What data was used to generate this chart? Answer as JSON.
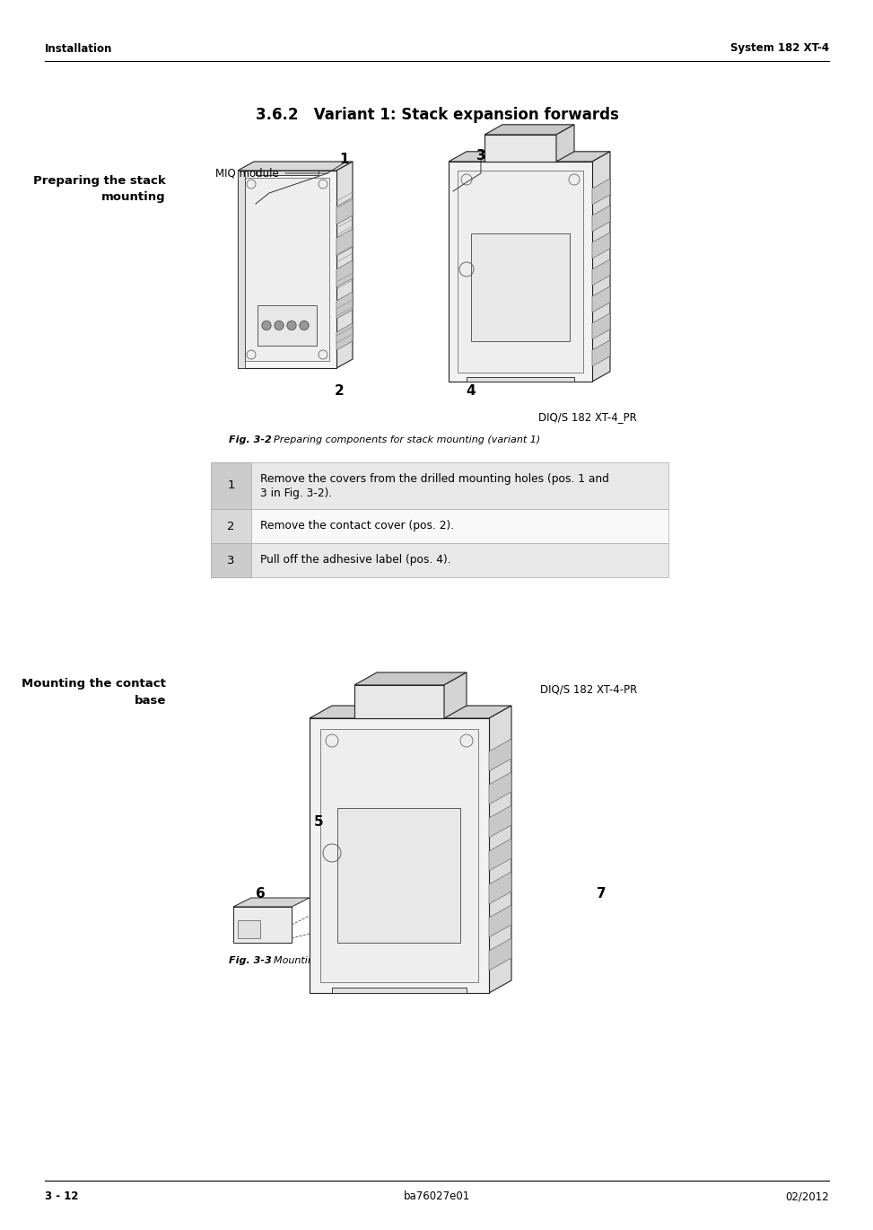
{
  "page_bg": "#ffffff",
  "header_left": "Installation",
  "header_right": "System 182 XT-4",
  "footer_left": "3 - 12",
  "footer_center": "ba76027e01",
  "footer_right": "02/2012",
  "section_title": "3.6.2   Variant 1: Stack expansion forwards",
  "left_label_1_line1": "Preparing the stack",
  "left_label_1_line2": "mounting",
  "left_label_2_line1": "Mounting the contact",
  "left_label_2_line2": "base",
  "fig1_label": "Fig. 3-2",
  "fig1_caption_text": "Preparing components for stack mounting (variant 1)",
  "fig2_label": "Fig. 3-3",
  "fig2_caption_text": "Mounting the contact base (variant 1)",
  "diq_label_1": "DIQ/S 182 XT-4_PR",
  "diq_label_2": "DIQ/S 182 XT-4-PR",
  "miq_label": "MIQ module",
  "table_rows": [
    {
      "num": "1",
      "text_line1": "Remove the covers from the drilled mounting holes (pos. 1 and",
      "text_line2": "3 in Fig. 3-2)."
    },
    {
      "num": "2",
      "text_line1": "Remove the contact cover (pos. 2).",
      "text_line2": ""
    },
    {
      "num": "3",
      "text_line1": "Pull off the adhesive label (pos. 4).",
      "text_line2": ""
    }
  ],
  "table_bg_odd": "#e8e8e8",
  "table_bg_even": "#f8f8f8",
  "table_num_bg": "#c8c8c8",
  "table_border": "#aaaaaa",
  "text_color": "#000000",
  "edge_color": "#222222",
  "light_gray": "#f0f0f0",
  "mid_gray": "#d0d0d0",
  "dark_gray": "#aaaaaa"
}
